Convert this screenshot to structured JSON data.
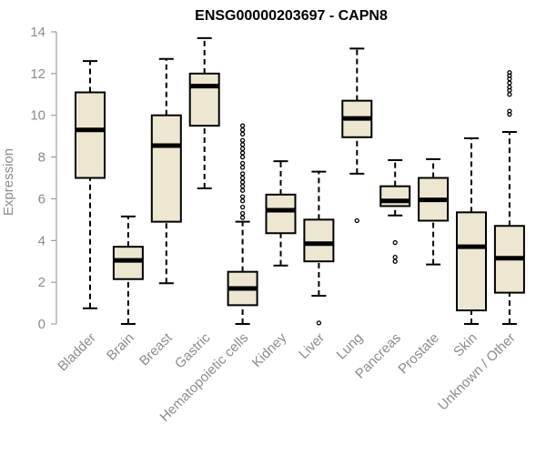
{
  "chart_data": {
    "type": "box",
    "title": "ENSG00000203697 - CAPN8",
    "xlabel": "",
    "ylabel": "Expression",
    "ylim": [
      0,
      14
    ],
    "yticks": [
      0,
      2,
      4,
      6,
      8,
      10,
      12,
      14
    ],
    "grid": false,
    "legend": "none",
    "colors": {
      "box_fill": "#ede7d1",
      "stroke": "#000000",
      "axis": "#8c8c8c",
      "text": "#8c8c8c"
    },
    "categories": [
      "Bladder",
      "Brain",
      "Breast",
      "Gastric",
      "Hematopoietic cells",
      "Kidney",
      "Liver",
      "Lung",
      "Pancreas",
      "Prostate",
      "Skin",
      "Unknown / Other"
    ],
    "boxes": [
      {
        "name": "Bladder",
        "min": 0.75,
        "q1": 7.0,
        "median": 9.3,
        "q3": 11.1,
        "max": 12.6,
        "outliers": []
      },
      {
        "name": "Brain",
        "min": 0.0,
        "q1": 2.15,
        "median": 3.05,
        "q3": 3.7,
        "max": 5.15,
        "outliers": []
      },
      {
        "name": "Breast",
        "min": 1.95,
        "q1": 4.9,
        "median": 8.55,
        "q3": 10.0,
        "max": 12.7,
        "outliers": []
      },
      {
        "name": "Gastric",
        "min": 6.5,
        "q1": 9.5,
        "median": 11.4,
        "q3": 12.0,
        "max": 13.7,
        "outliers": []
      },
      {
        "name": "Hematopoietic cells",
        "min": 0.0,
        "q1": 0.9,
        "median": 1.7,
        "q3": 2.5,
        "max": 4.9,
        "outliers": [
          5.1,
          5.3,
          5.6,
          5.9,
          6.1,
          6.4,
          6.6,
          6.8,
          7.0,
          7.2,
          7.5,
          7.7,
          8.0,
          8.2,
          8.4,
          8.6,
          8.8,
          9.1,
          9.3,
          9.5
        ]
      },
      {
        "name": "Kidney",
        "min": 2.8,
        "q1": 4.35,
        "median": 5.45,
        "q3": 6.2,
        "max": 7.8,
        "outliers": []
      },
      {
        "name": "Liver",
        "min": 1.35,
        "q1": 3.0,
        "median": 3.85,
        "q3": 5.0,
        "max": 7.3,
        "outliers": [
          0.05
        ]
      },
      {
        "name": "Lung",
        "min": 7.2,
        "q1": 8.95,
        "median": 9.85,
        "q3": 10.7,
        "max": 13.2,
        "outliers": [
          4.95
        ]
      },
      {
        "name": "Pancreas",
        "min": 5.2,
        "q1": 5.65,
        "median": 5.9,
        "q3": 6.6,
        "max": 7.85,
        "outliers": [
          3.0,
          3.2,
          3.9
        ]
      },
      {
        "name": "Prostate",
        "min": 2.85,
        "q1": 4.95,
        "median": 5.95,
        "q3": 7.0,
        "max": 7.9,
        "outliers": []
      },
      {
        "name": "Skin",
        "min": 0.0,
        "q1": 0.65,
        "median": 3.7,
        "q3": 5.35,
        "max": 8.9,
        "outliers": []
      },
      {
        "name": "Unknown / Other",
        "min": 0.0,
        "q1": 1.5,
        "median": 3.15,
        "q3": 4.7,
        "max": 9.2,
        "outliers": [
          10.05,
          10.2,
          11.0,
          11.2,
          11.35,
          11.55,
          11.75,
          11.9,
          12.05
        ]
      }
    ]
  }
}
